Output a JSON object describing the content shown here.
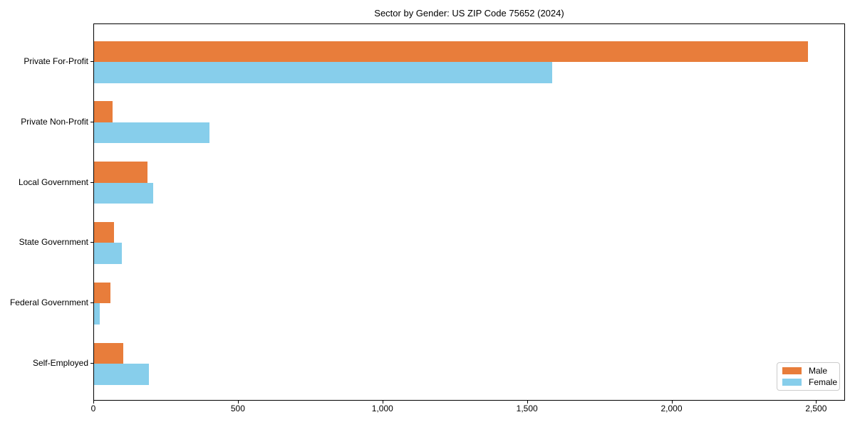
{
  "chart_data": {
    "type": "bar",
    "orientation": "horizontal",
    "title": "Sector by Gender: US ZIP Code 75652 (2024)",
    "xlabel": "",
    "ylabel": "",
    "grid": false,
    "categories": [
      "Private For-Profit",
      "Private Non-Profit",
      "Local Government",
      "State Government",
      "Federal Government",
      "Self-Employed"
    ],
    "series": [
      {
        "name": "Male",
        "color": "#E87D3B",
        "values": [
          2470,
          65,
          185,
          70,
          57,
          100
        ]
      },
      {
        "name": "Female",
        "color": "#87CEEB",
        "values": [
          1585,
          400,
          205,
          95,
          19,
          190
        ]
      }
    ],
    "xlim": [
      0,
      2600
    ],
    "xticks": [
      {
        "value": 0,
        "label": "0"
      },
      {
        "value": 500,
        "label": "500"
      },
      {
        "value": 1000,
        "label": "1,000"
      },
      {
        "value": 1500,
        "label": "1,500"
      },
      {
        "value": 2000,
        "label": "2,000"
      },
      {
        "value": 2500,
        "label": "2,500"
      }
    ],
    "legend": {
      "position": "lower-right",
      "labels": [
        "Male",
        "Female"
      ]
    }
  }
}
